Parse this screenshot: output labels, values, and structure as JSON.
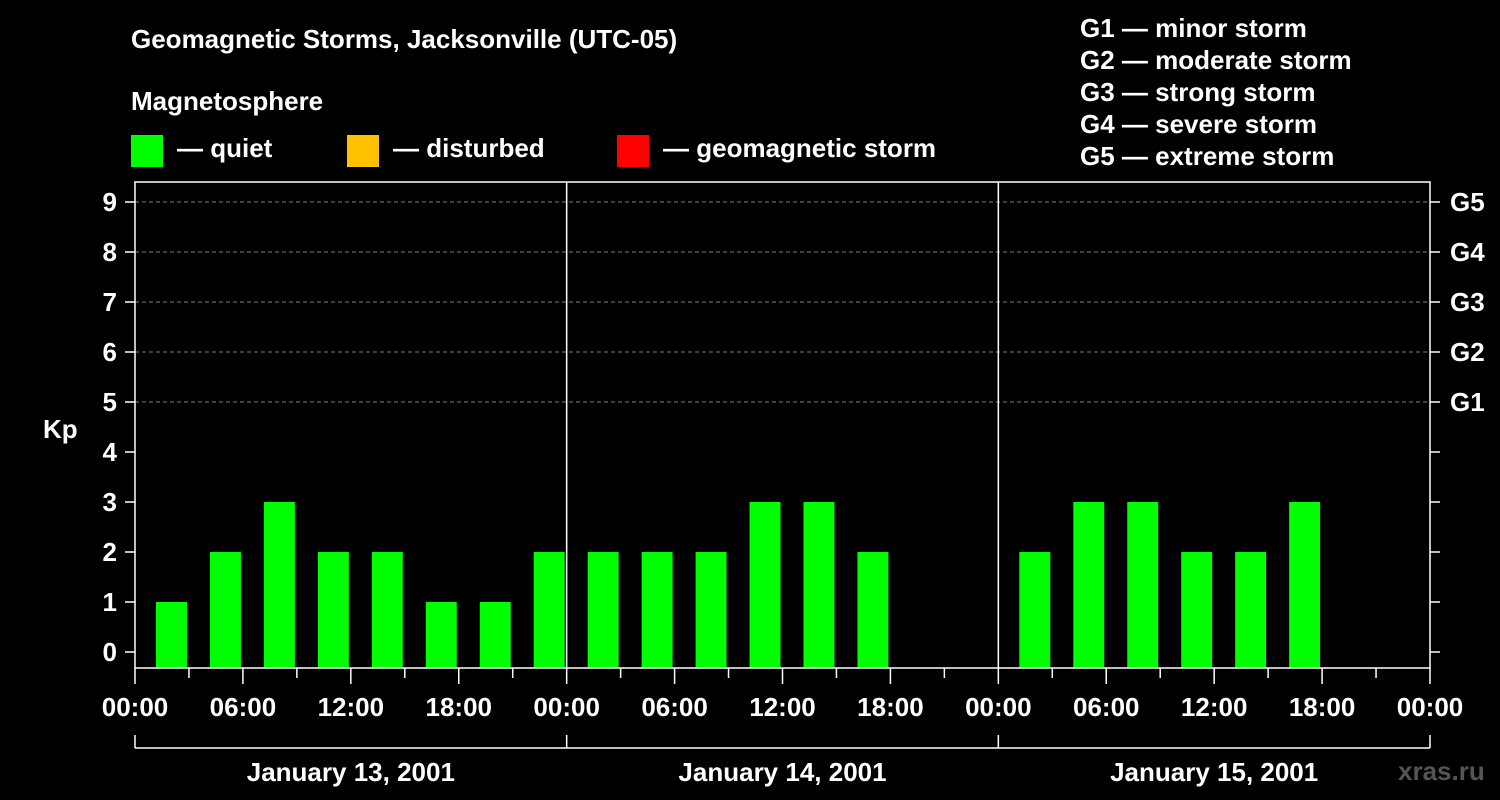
{
  "colors": {
    "quiet": "#00ff00",
    "disturbed": "#ffc000",
    "storm": "#ff0000",
    "background": "#000000",
    "grid": "#808080",
    "axis": "#ffffff"
  },
  "header": {
    "title": "Geomagnetic Storms, Jacksonville (UTC-05)",
    "subtitle": "Magnetosphere"
  },
  "legend": {
    "quiet": "— quiet",
    "disturbed": "— disturbed",
    "storm": "— geomagnetic storm"
  },
  "scale_legend": [
    "G1 — minor storm",
    "G2 — moderate storm",
    "G3 — strong storm",
    "G4 — severe storm",
    "G5 — extreme storm"
  ],
  "watermark": "xras.ru",
  "chart_data": {
    "type": "bar",
    "title": "Geomagnetic Storms, Jacksonville (UTC-05)",
    "ylabel": "Kp",
    "ylim": [
      0,
      9
    ],
    "yticks": [
      "0",
      "1",
      "2",
      "3",
      "4",
      "5",
      "6",
      "7",
      "8",
      "9"
    ],
    "right_ticks": [
      {
        "kp": 5,
        "label": "G1"
      },
      {
        "kp": 6,
        "label": "G2"
      },
      {
        "kp": 7,
        "label": "G3"
      },
      {
        "kp": 8,
        "label": "G4"
      },
      {
        "kp": 9,
        "label": "G5"
      }
    ],
    "xticks": [
      "00:00",
      "06:00",
      "12:00",
      "18:00",
      "00:00",
      "06:00",
      "12:00",
      "18:00",
      "00:00",
      "06:00",
      "12:00",
      "18:00",
      "00:00"
    ],
    "days": [
      "January 13, 2001",
      "January 14, 2001",
      "January 15, 2001"
    ],
    "grid": true,
    "bar_hours": 3,
    "series": [
      {
        "day": "January 13, 2001",
        "values": [
          1,
          2,
          3,
          2,
          2,
          1,
          1,
          2
        ]
      },
      {
        "day": "January 14, 2001",
        "values": [
          2,
          2,
          2,
          3,
          3,
          2,
          null,
          null
        ]
      },
      {
        "day": "January 15, 2001",
        "values": [
          2,
          3,
          3,
          2,
          2,
          3,
          null,
          null
        ]
      }
    ]
  }
}
